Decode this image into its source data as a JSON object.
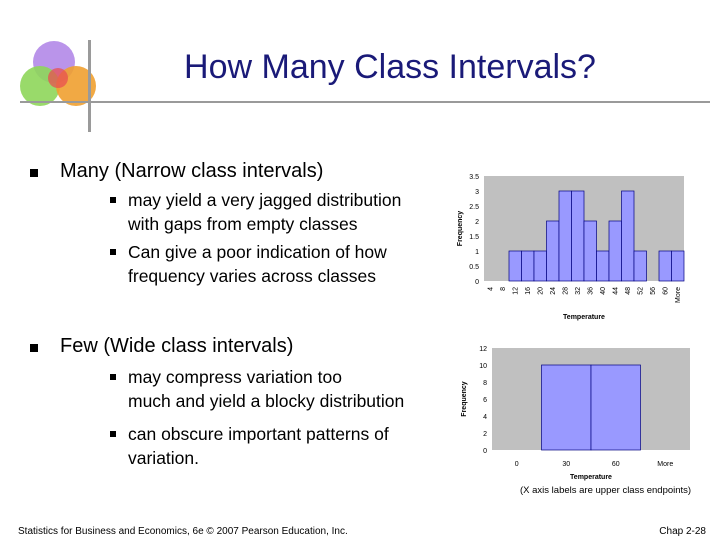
{
  "slide": {
    "title": "How Many Class Intervals?",
    "bullet1": {
      "label_bold": "Many (Narrow class intervals",
      "label_end": ")",
      "subs": [
        [
          "may yield a very jagged distribution",
          "with gaps from empty classes"
        ],
        [
          "Can give a poor indication of how",
          "frequency varies across classes"
        ]
      ]
    },
    "bullet2": {
      "label_bold": "Few (Wide class intervals",
      "label_end": ")",
      "subs": [
        [
          "may compress variation too",
          " much and yield a blocky distribution"
        ],
        [
          "can obscure important patterns of",
          "variation."
        ]
      ]
    },
    "note": "(X axis labels are upper class endpoints)",
    "footer_left": "Statistics for Business and Economics, 6e © 2007 Pearson Education, Inc.",
    "footer_right": "Chap 2-28"
  },
  "colors": {
    "title": "#1a1a78",
    "plot_bg": "#c0c0c0",
    "bar_fill": "#9999ff",
    "bar_stroke": "#000080"
  },
  "chart_data": [
    {
      "type": "bar",
      "categories": [
        "4",
        "8",
        "12",
        "16",
        "20",
        "24",
        "28",
        "32",
        "36",
        "40",
        "44",
        "48",
        "52",
        "56",
        "60",
        "More"
      ],
      "values": [
        0,
        0,
        1,
        1,
        1,
        2,
        3,
        3,
        2,
        1,
        2,
        3,
        1,
        0,
        1,
        1
      ],
      "xlabel": "Temperature",
      "ylabel": "Frequency",
      "yticks": [
        0,
        0.5,
        1,
        1.5,
        2,
        2.5,
        3,
        3.5
      ],
      "ylim": [
        0,
        3.5
      ],
      "grid": false,
      "legend": "none"
    },
    {
      "type": "bar",
      "categories": [
        "0",
        "30",
        "60",
        "More"
      ],
      "values": [
        0,
        10,
        10,
        0
      ],
      "xlabel": "Temperature",
      "ylabel": "Frequency",
      "yticks": [
        0,
        2,
        4,
        6,
        8,
        10,
        12
      ],
      "ylim": [
        0,
        12
      ],
      "grid": false,
      "legend": "none"
    }
  ]
}
